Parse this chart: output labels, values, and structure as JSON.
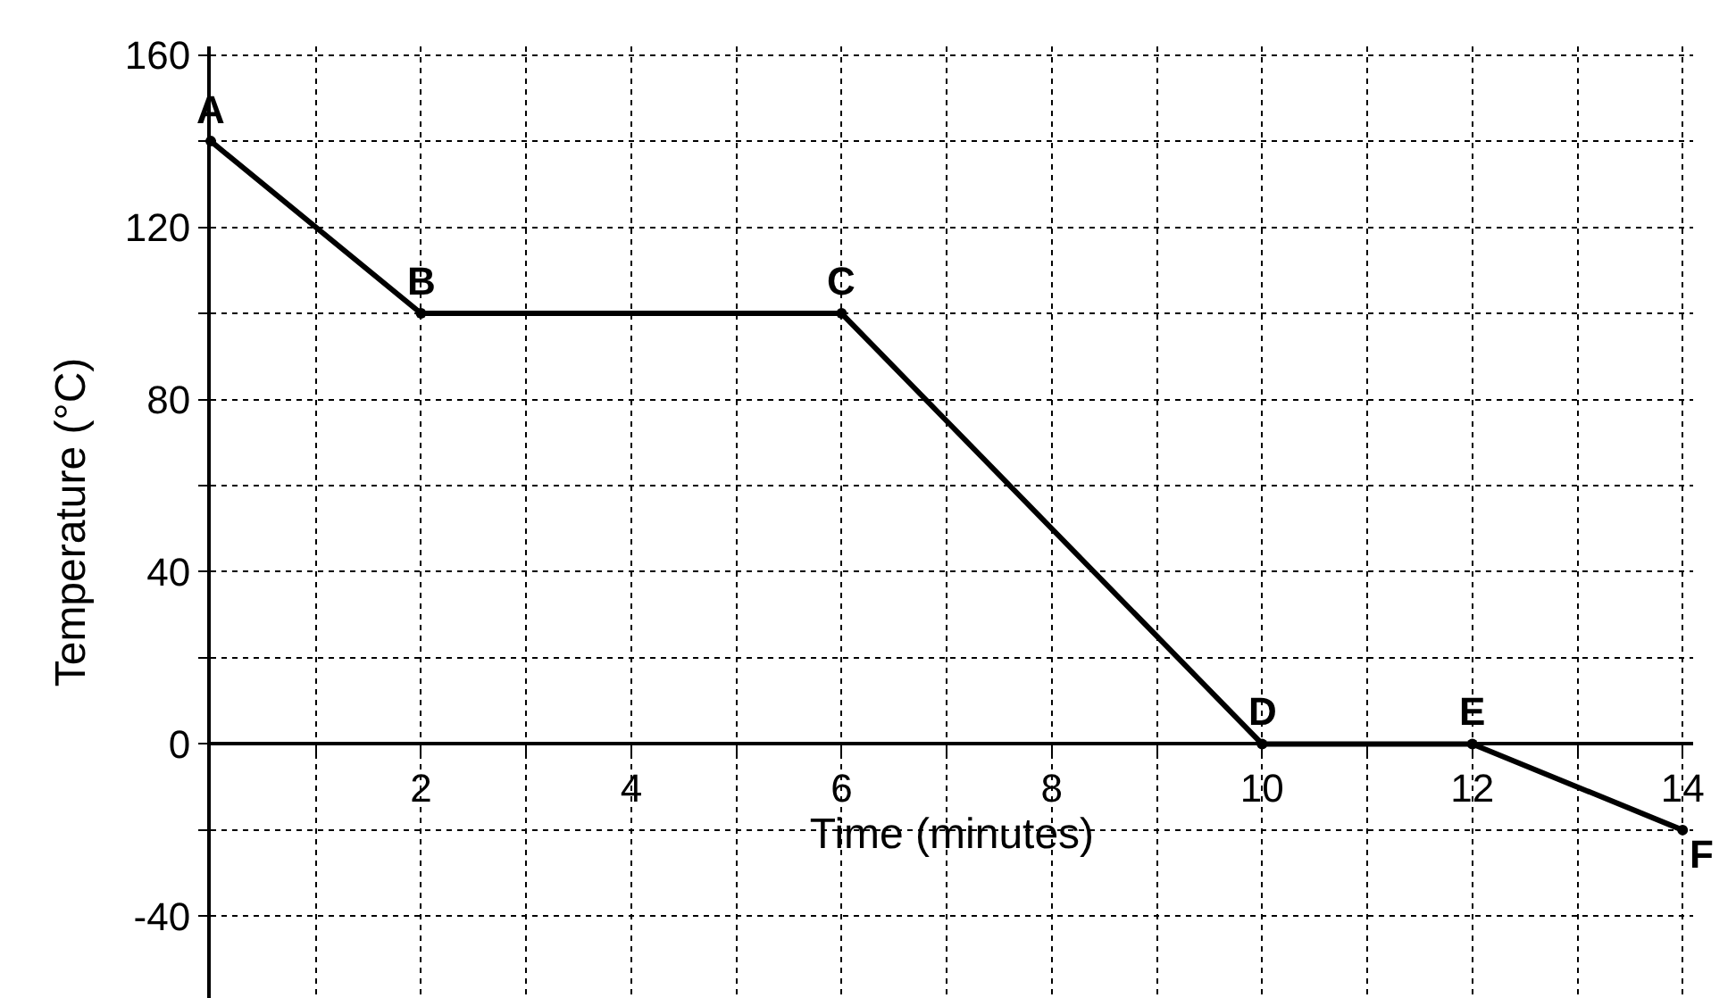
{
  "chart_data": {
    "type": "line",
    "xlabel": "Time (minutes)",
    "ylabel": "Temperature (°C)",
    "x": [
      0,
      2,
      6,
      10,
      12,
      14
    ],
    "series": [
      {
        "color": "#000000",
        "values": [
          140,
          100,
          100,
          0,
          0,
          -20
        ]
      }
    ],
    "xlim": [
      0,
      14.1
    ],
    "ylim": [
      -59,
      162
    ],
    "xticks": [
      {
        "value": 1,
        "label": null
      },
      2,
      {
        "value": 3,
        "label": null
      },
      4,
      {
        "value": 5,
        "label": null
      },
      6,
      {
        "value": 7,
        "label": null
      },
      8,
      {
        "value": 9,
        "label": null
      },
      10,
      {
        "value": 11,
        "label": null
      },
      12,
      {
        "value": 13,
        "label": null
      },
      14
    ],
    "yticks": [
      -40,
      {
        "value": -20,
        "label": null
      },
      0,
      {
        "value": 20,
        "label": null
      },
      40,
      {
        "value": 60,
        "label": null
      },
      80,
      {
        "value": 100,
        "label": null
      },
      120,
      {
        "value": 140,
        "label": null
      },
      160
    ],
    "grid": true,
    "marker": "circle",
    "line_style": "solid",
    "annotations": [
      {
        "text": "A",
        "x": 0,
        "y": 140
      },
      {
        "text": "B",
        "x": 2,
        "y": 100
      },
      {
        "text": "C",
        "x": 6,
        "y": 100
      },
      {
        "text": "D",
        "x": 10,
        "y": 0
      },
      {
        "text": "E",
        "x": 12,
        "y": 0
      },
      {
        "text": "F",
        "x": 14,
        "y": -20
      }
    ]
  }
}
